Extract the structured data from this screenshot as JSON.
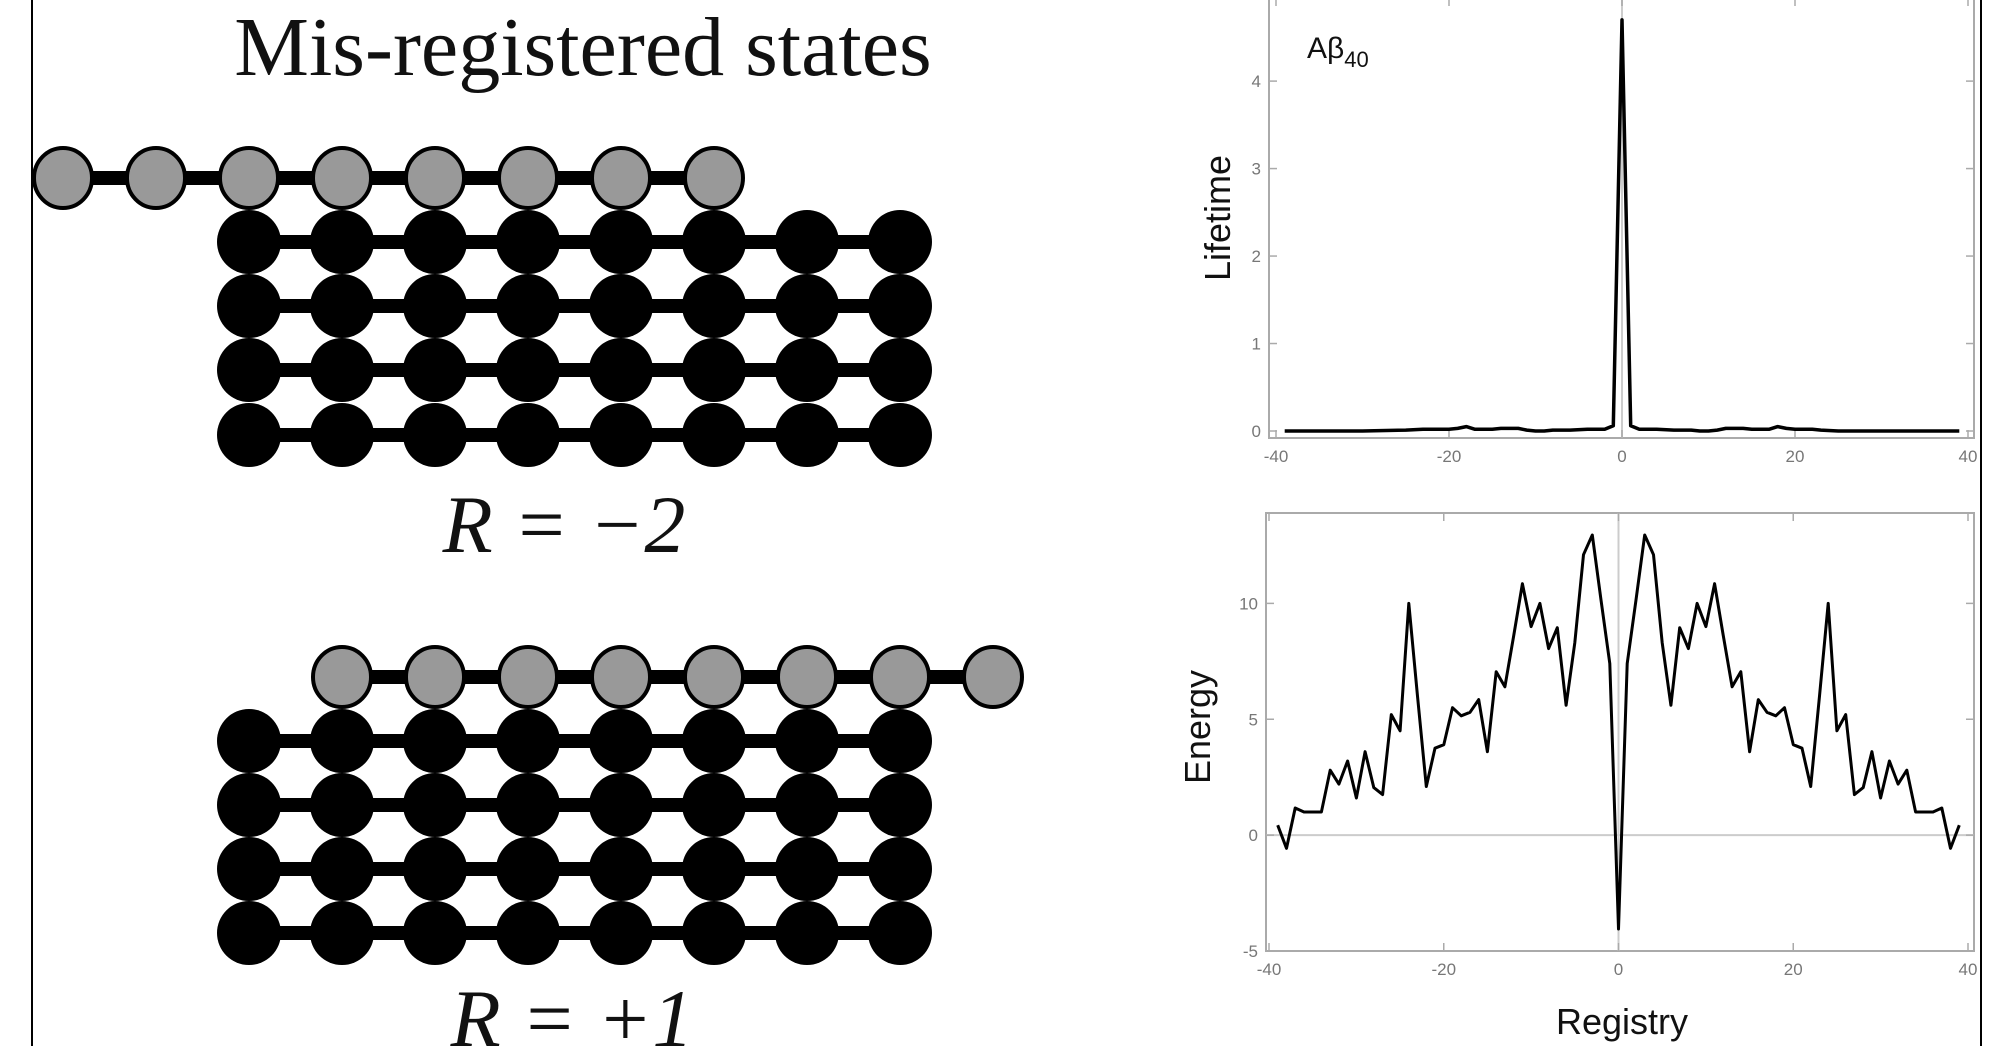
{
  "figure": {
    "title": "Mis-registered states",
    "panels": [
      {
        "label": "R = −2",
        "shift": -2
      },
      {
        "label": "R = +1",
        "shift": 1
      }
    ],
    "strand_length": 8,
    "fibril_layers": 4,
    "colors": {
      "misregistered": "#999999",
      "fibril": "#000000"
    }
  },
  "chart_data": [
    {
      "type": "line",
      "annotation": "Aβ40",
      "annotation_main": "Aβ",
      "annotation_sub": "40",
      "xlabel": "",
      "ylabel": "Lifetime",
      "xlim": [
        -40,
        40
      ],
      "ylim": [
        -0.08,
        4.95
      ],
      "xticks": [
        "-40",
        "-20",
        "0",
        "20",
        "40"
      ],
      "xtick_values": [
        -40,
        -20,
        0,
        20,
        40
      ],
      "yticks": [
        "0",
        "1",
        "2",
        "3",
        "4"
      ],
      "ytick_values": [
        0,
        1,
        2,
        3,
        4
      ],
      "x": [
        -39,
        -35,
        -30,
        -25,
        -23,
        -22,
        -20,
        -19,
        -18,
        -17,
        -16,
        -15,
        -14,
        -13,
        -12,
        -11,
        -10,
        -9,
        -8,
        -6,
        -4,
        -2,
        -1,
        0,
        1,
        2,
        4,
        6,
        8,
        9,
        10,
        11,
        12,
        13,
        14,
        15,
        16,
        17,
        18,
        19,
        20,
        22,
        23,
        25,
        30,
        35,
        39
      ],
      "y": [
        0,
        0,
        0,
        0.01,
        0.02,
        0.02,
        0.02,
        0.03,
        0.05,
        0.02,
        0.02,
        0.02,
        0.03,
        0.03,
        0.03,
        0.01,
        0,
        0,
        0.01,
        0.01,
        0.02,
        0.02,
        0.06,
        4.7,
        0.06,
        0.02,
        0.02,
        0.01,
        0.01,
        0,
        0,
        0.01,
        0.03,
        0.03,
        0.03,
        0.02,
        0.02,
        0.02,
        0.05,
        0.03,
        0.02,
        0.02,
        0.01,
        0,
        0,
        0,
        0
      ]
    },
    {
      "type": "line",
      "xlabel": "Registry",
      "ylabel": "Energy",
      "xlim": [
        -40,
        40
      ],
      "ylim": [
        -5,
        13.9
      ],
      "xticks": [
        "-40",
        "-20",
        "0",
        "20",
        "40"
      ],
      "xtick_values": [
        -40,
        -20,
        0,
        20,
        40
      ],
      "yticks": [
        "-5",
        "0",
        "5",
        "10"
      ],
      "ytick_values": [
        -5,
        0,
        5,
        10
      ],
      "x": [
        -39,
        -38,
        -37,
        -36,
        -35,
        -34,
        -33,
        -32,
        -31,
        -30,
        -29,
        -28,
        -27,
        -26,
        -25,
        -24,
        -23,
        -22,
        -21,
        -20,
        -19,
        -18,
        -17,
        -16,
        -15,
        -14,
        -13,
        -12,
        -11,
        -10,
        -9,
        -8,
        -7,
        -6,
        -5,
        -4,
        -3,
        -2,
        -1,
        0,
        1,
        2,
        3,
        4,
        5,
        6,
        7,
        8,
        9,
        10,
        11,
        12,
        13,
        14,
        15,
        16,
        17,
        18,
        19,
        20,
        21,
        22,
        23,
        24,
        25,
        26,
        27,
        28,
        29,
        30,
        31,
        32,
        33,
        34,
        35,
        36,
        37,
        38,
        39
      ],
      "y": [
        0.43,
        -0.57,
        1.17,
        1.0,
        1.0,
        1.0,
        2.8,
        2.2,
        3.2,
        1.6,
        3.6,
        2.05,
        1.75,
        5.2,
        4.5,
        10.0,
        6.0,
        2.1,
        3.75,
        3.9,
        5.5,
        5.15,
        5.3,
        5.85,
        3.6,
        7.05,
        6.4,
        8.6,
        10.85,
        9.0,
        10.0,
        8.05,
        8.95,
        5.6,
        8.3,
        12.1,
        12.95,
        10.15,
        7.4,
        -4.05,
        7.4,
        10.15,
        12.95,
        12.1,
        8.3,
        5.6,
        8.95,
        8.05,
        10.0,
        9.0,
        10.85,
        8.6,
        6.4,
        7.05,
        3.6,
        5.85,
        5.3,
        5.15,
        5.5,
        3.9,
        3.75,
        2.1,
        6.0,
        10.0,
        4.5,
        5.2,
        1.75,
        2.05,
        3.6,
        1.6,
        3.2,
        2.2,
        2.8,
        1.0,
        1.0,
        1.0,
        1.17,
        -0.57,
        0.43
      ]
    }
  ]
}
